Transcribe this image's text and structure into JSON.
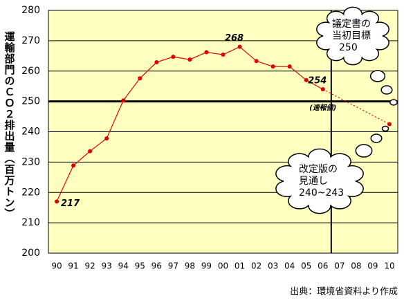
{
  "chart_data": {
    "type": "line",
    "ylabel": "運輸部門のＣＯ２排出量（百万トン）",
    "source": "出典：環境省資料より作成",
    "categories": [
      "90",
      "91",
      "92",
      "93",
      "94",
      "95",
      "96",
      "97",
      "98",
      "99",
      "00",
      "01",
      "02",
      "03",
      "04",
      "05",
      "06",
      "07",
      "08",
      "09",
      "10"
    ],
    "series": [
      {
        "color": "#e00000",
        "values": [
          217,
          228.9,
          233.6,
          237.8,
          250.3,
          257.6,
          262.9,
          264.7,
          263.8,
          266.2,
          265.4,
          268,
          263.3,
          261.5,
          261.5,
          257,
          254,
          null,
          null,
          null,
          null
        ],
        "value_labels": [
          "217",
          null,
          null,
          null,
          null,
          null,
          null,
          null,
          null,
          null,
          null,
          "268",
          null,
          null,
          null,
          null,
          "254",
          null,
          null,
          null,
          null
        ]
      },
      {
        "color": "#e00000",
        "dashed": true,
        "connect_gaps": true,
        "values": [
          null,
          null,
          null,
          null,
          null,
          null,
          null,
          null,
          null,
          null,
          null,
          null,
          null,
          null,
          null,
          null,
          254,
          null,
          null,
          null,
          242.5
        ]
      }
    ],
    "ylim": [
      200,
      280
    ],
    "yticks": [
      200,
      210,
      220,
      230,
      240,
      250,
      260,
      270,
      280
    ],
    "grid": true,
    "target_line": 250,
    "annotations": [
      {
        "text": "(速報値)"
      },
      {
        "lines": [
          "議定書の",
          "当初目標",
          "250"
        ]
      },
      {
        "lines": [
          "改定版の",
          "見通し",
          "240~243"
        ]
      }
    ]
  }
}
